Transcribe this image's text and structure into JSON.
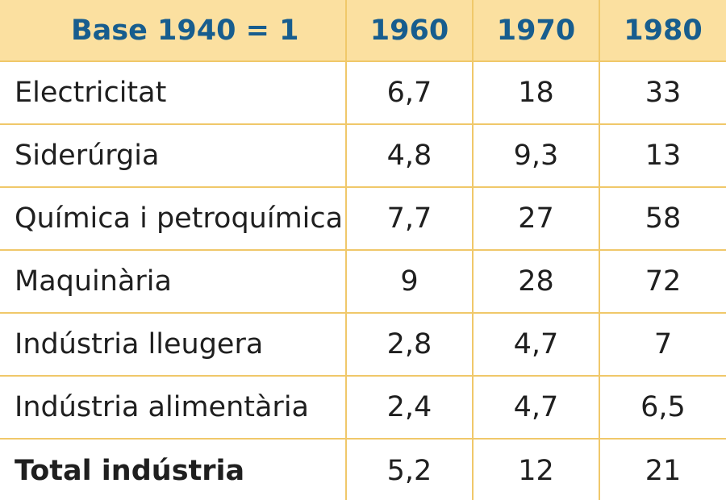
{
  "chart_data": {
    "type": "table",
    "header": [
      "Base 1940 = 1",
      "1960",
      "1970",
      "1980"
    ],
    "rows": [
      [
        "Electricitat",
        "6,7",
        "18",
        "33"
      ],
      [
        "Siderúrgia",
        "4,8",
        "9,3",
        "13"
      ],
      [
        "Química i petroquímica",
        "7,7",
        "27",
        "58"
      ],
      [
        "Maquinària",
        "9",
        "28",
        "72"
      ],
      [
        "Indústria lleugera",
        "2,8",
        "4,7",
        "7"
      ],
      [
        "Indústria alimentària",
        "2,4",
        "4,7",
        "6,5"
      ],
      [
        "Total indústria",
        "5,2",
        "12",
        "21"
      ]
    ],
    "colors": {
      "header_background": "#fbe0a0",
      "header_text": "#175d8e",
      "grid_lines": "#f0c86a"
    }
  }
}
